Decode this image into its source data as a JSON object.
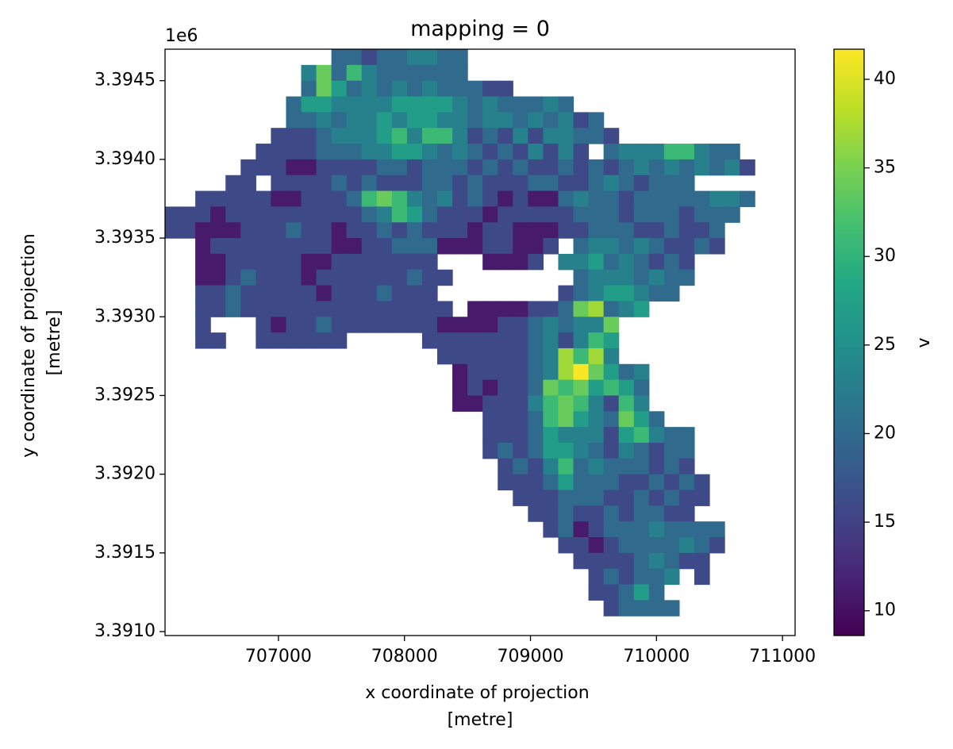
{
  "chart_data": {
    "type": "heatmap",
    "title": "mapping = 0",
    "xlabel": "x coordinate of projection\n[metre]",
    "ylabel": "y coordinate of projection\n[metre]",
    "y_offset_label": "1e6",
    "xlim": [
      706100,
      711100
    ],
    "ylim": [
      3390975,
      3394700
    ],
    "x_ticks": [
      707000,
      708000,
      709000,
      710000,
      711000
    ],
    "x_tick_labels": [
      "707000",
      "708000",
      "709000",
      "710000",
      "711000"
    ],
    "y_ticks": [
      3391.0,
      3391.5,
      3392.0,
      3392.5,
      3393.0,
      3393.5,
      3394.0,
      3394.5
    ],
    "y_tick_labels": [
      "3.3910",
      "3.3915",
      "3.3920",
      "3.3925",
      "3.3930",
      "3.3935",
      "3.3940",
      "3.3945"
    ],
    "colorbar": {
      "label": "v",
      "colormap": "viridis",
      "vmin": 8.6,
      "vmax": 41.7,
      "ticks": [
        10,
        15,
        20,
        25,
        30,
        35,
        40
      ],
      "tick_labels": [
        "10",
        "15",
        "20",
        "25",
        "30",
        "35",
        "40"
      ]
    },
    "grid": false,
    "cell_size": [
      120,
      100
    ],
    "col0_x": 706160,
    "row0_y": 3394650,
    "rows": [
      "           ccbccddcc          ",
      "         dgcfdcccccc          ",
      "         cgecdcdcdcccbb       ",
      "        ceeddddeeeedcdcccdc   ",
      "        ccdcddedeeddcddcdcdbc ",
      "       bbbcdddefdffdbcbdbddccb",
      "      bbbbcccddeedcdcbcbdbdb cdddffdcc",
      "     bbbaabbbbccbcccbcbcbbcbcbcdcdcdcdb",
      "    bb bbbbcbcbbbccbcbbbccbbcdcbccc",
      "  bbbbbaabbbcfgfdcdbcbabaacdccbcccccddc",
      "bbbabbbbbbbbbcdfecbbbabbbbbcccbcccbccc",
      "bbaaabbbcbbabbcbcbbbabbaaabbcccbbcbbc",
      "  abbbbbbbbaabbcccaaabbaab cddcdcbbcb",
      "  aabbbbbaabbbbbbb   aaab ddecdcbcb",
      "  aabcbbbabbbbbbcbb        cdddcdcc",
      "  bbcbbbbbabbbcbbb        bcdeedcc",
      "  bbcbbbbbbbbbbbbbb aaaabbcghcde",
      "  b   babbcbbbbbbbaaaabbcdcddg",
      "  bb  bbbbbb     bbbbbbbcdbdfe",
      "                  bbbbbbcdhfhd",
      "                   abbbbcdhjgecd",
      "                   ababbcgfgefec",
      "                   aabbbdfgfdbfd",
      "                     bbbcfgedcgec",
      "                     bbbcedddbefdcc",
      "                     bcbceedcbdcbcc",
      "                      bcbdfcdcccbcb",
      "                      bbbcecccbbcbcb",
      "                       bbbcccbbcbcbb",
      "                        bbcbbcbccbb",
      "                         bcabcccdcccc",
      "                          bbabccccdcb",
      "                           bbbbcdcbb",
      "                            bcbccd b",
      "                            bbcec",
      "                             bcccc"
    ]
  }
}
